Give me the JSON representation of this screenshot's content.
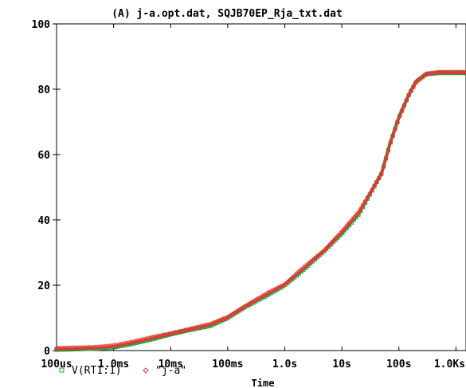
{
  "chart_data": {
    "type": "scatter",
    "title": "(A) j-a.opt.dat, SQJB70EP_Rja_txt.dat",
    "xlabel": "Time",
    "ylabel": "",
    "x_scale": "log",
    "xlim": [
      "100us",
      "1.5Ks"
    ],
    "xlim_seconds": [
      0.0001,
      1500
    ],
    "ylim": [
      0,
      100
    ],
    "x_ticks": [
      {
        "label": "100us",
        "value": 0.0001
      },
      {
        "label": "1.0ms",
        "value": 0.001
      },
      {
        "label": "10ms",
        "value": 0.01
      },
      {
        "label": "100ms",
        "value": 0.1
      },
      {
        "label": "1.0s",
        "value": 1
      },
      {
        "label": "10s",
        "value": 10
      },
      {
        "label": "100s",
        "value": 100
      },
      {
        "label": "1.0Ks",
        "value": 1000
      }
    ],
    "y_ticks": [
      {
        "label": "0",
        "value": 0
      },
      {
        "label": "20",
        "value": 20
      },
      {
        "label": "40",
        "value": 40
      },
      {
        "label": "60",
        "value": 60
      },
      {
        "label": "80",
        "value": 80
      },
      {
        "label": "100",
        "value": 100
      }
    ],
    "grid": false,
    "legend_position": "bottom-left",
    "series": [
      {
        "name": "V(RT1:1)",
        "color": "#1f9e3a",
        "marker": "square",
        "x": [
          0.0001,
          0.0002,
          0.0005,
          0.001,
          0.002,
          0.005,
          0.01,
          0.02,
          0.05,
          0.1,
          0.2,
          0.5,
          1,
          2,
          5,
          10,
          20,
          50,
          70,
          100,
          150,
          200,
          300,
          500,
          1000,
          1500
        ],
        "y": [
          0.5,
          0.6,
          0.8,
          1.2,
          2.2,
          3.8,
          5.2,
          6.4,
          7.8,
          10.2,
          13.5,
          17.2,
          20.2,
          24.5,
          30.8,
          36.0,
          42.0,
          54.5,
          63.5,
          71.5,
          78.5,
          82.5,
          84.8,
          85.2,
          85.2,
          85.2
        ]
      },
      {
        "name": "\"j-a\"",
        "color": "#e03a34",
        "marker": "diamond",
        "x": [
          0.0001,
          0.0002,
          0.0005,
          0.001,
          0.002,
          0.005,
          0.01,
          0.02,
          0.05,
          0.1,
          0.2,
          0.5,
          1,
          2,
          5,
          10,
          20,
          50,
          70,
          100,
          150,
          200,
          300,
          500,
          1000,
          1500
        ],
        "y": [
          0.5,
          0.6,
          0.8,
          1.3,
          2.3,
          3.9,
          5.0,
          6.2,
          7.9,
          10.0,
          13.3,
          17.4,
          20.0,
          24.8,
          30.5,
          36.2,
          42.3,
          54.0,
          63.0,
          71.0,
          78.2,
          82.0,
          84.5,
          85.0,
          85.0,
          85.0
        ]
      }
    ]
  }
}
